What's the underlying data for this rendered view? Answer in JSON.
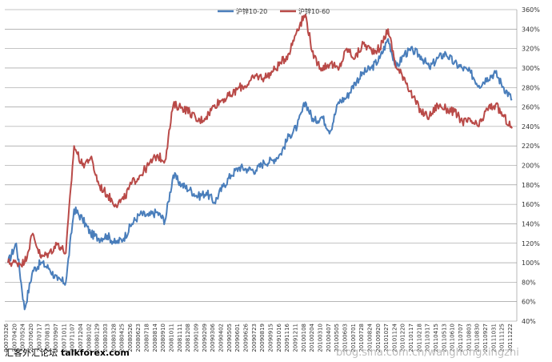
{
  "chart_data": {
    "type": "line",
    "title": "",
    "xlabel": "",
    "ylabel": "",
    "ylim": [
      40,
      360
    ],
    "y_ticks": [
      40,
      60,
      80,
      100,
      120,
      140,
      160,
      180,
      200,
      220,
      240,
      260,
      280,
      300,
      320,
      340,
      360
    ],
    "y_tick_suffix": "%",
    "grid": "horizontal",
    "legend_position": "top",
    "x_tick_labels": [
      "20070326",
      "20070420",
      "20070524",
      "20070620",
      "20070717",
      "20070813",
      "20070907",
      "20071011",
      "20071107",
      "20071204",
      "20080102",
      "20080129",
      "20080303",
      "20080328",
      "20080425",
      "20080526",
      "20080623",
      "20080718",
      "20080814",
      "20080910",
      "20081011",
      "20081111",
      "20081208",
      "20090109",
      "20090209",
      "20090306",
      "20090402",
      "20090505",
      "20090601",
      "20090626",
      "20090723",
      "20090819",
      "20090915",
      "20091016",
      "20091116",
      "20091211",
      "20100108",
      "20100204",
      "20100310",
      "20100407",
      "20100505",
      "20100603",
      "20100701",
      "20100728",
      "20100824",
      "20100920",
      "20101027",
      "20101124",
      "20101220",
      "20110117",
      "20110218",
      "20110317",
      "20110415",
      "20110513",
      "20110610",
      "20110707",
      "20110803",
      "20110830",
      "20110927",
      "20111031",
      "20111125",
      "20111222"
    ],
    "series": [
      {
        "name": "沪锌10-20",
        "color": "#4a7ebb",
        "values": [
          100,
          120,
          52,
          92,
          100,
          94,
          82,
          80,
          155,
          145,
          130,
          125,
          128,
          120,
          125,
          140,
          150,
          148,
          152,
          143,
          190,
          180,
          175,
          168,
          172,
          162,
          178,
          190,
          198,
          196,
          195,
          203,
          205,
          212,
          230,
          240,
          265,
          245,
          250,
          235,
          265,
          270,
          285,
          295,
          300,
          310,
          330,
          300,
          315,
          318,
          312,
          300,
          310,
          315,
          305,
          300,
          295,
          282,
          290,
          295,
          280,
          268
        ]
      },
      {
        "name": "沪锌10-60",
        "color": "#b94a48",
        "values": [
          100,
          100,
          100,
          130,
          105,
          110,
          120,
          110,
          220,
          200,
          208,
          180,
          170,
          160,
          165,
          182,
          190,
          200,
          210,
          205,
          262,
          260,
          255,
          245,
          250,
          262,
          268,
          272,
          280,
          283,
          292,
          290,
          296,
          305,
          315,
          340,
          355,
          310,
          300,
          305,
          298,
          320,
          310,
          325,
          318,
          320,
          340,
          300,
          290,
          270,
          255,
          250,
          262,
          258,
          255,
          245,
          245,
          240,
          258,
          262,
          250,
          238
        ]
      }
    ]
  },
  "watermark": {
    "left_text": "汇客外汇论坛",
    "left_site": "talkforex.com",
    "right_text": "blog.sina.com.cn/wanghongxingzhi"
  }
}
